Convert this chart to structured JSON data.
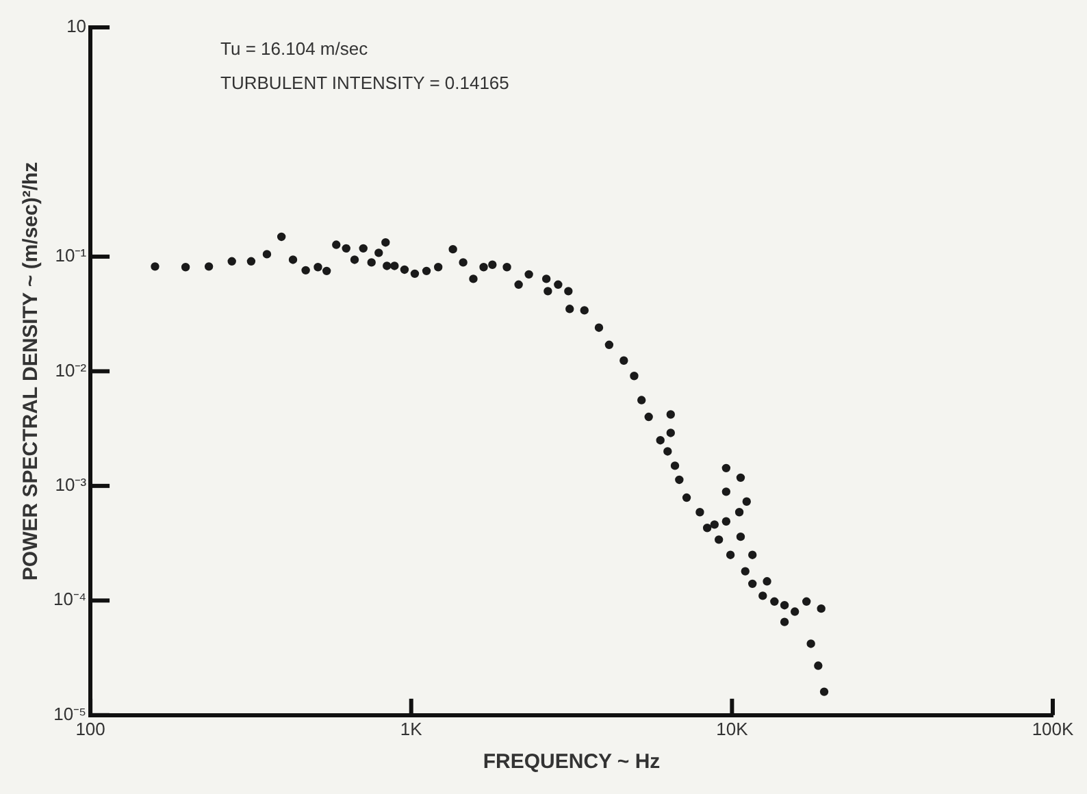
{
  "chart_data": {
    "type": "scatter",
    "xlabel": "FREQUENCY ~ Hz",
    "ylabel": "POWER SPECTRAL DENSITY ~ (m/sec)²/hz",
    "annotations": [
      "Tu = 16.104 m/sec",
      "TURBULENT INTENSITY = 0.14165"
    ],
    "log": "xy",
    "grid": false,
    "legend": false,
    "marker": "circle",
    "xlim": [
      100,
      100000
    ],
    "xticks": [
      100,
      {
        "value": 1000,
        "label": "1K"
      },
      {
        "value": 10000,
        "label": "10K"
      },
      {
        "value": 100000,
        "label": "100K"
      }
    ],
    "ylim": [
      1e-05,
      10
    ],
    "yticks": [
      {
        "value": 1e-05,
        "label": "10⁻⁵"
      },
      {
        "value": 0.0001,
        "label": "10⁻⁴"
      },
      {
        "value": 0.001,
        "label": "10⁻³"
      },
      {
        "value": 0.01,
        "label": "10⁻²"
      },
      {
        "value": 0.1,
        "label": "10⁻¹"
      },
      10
    ],
    "series": [
      {
        "color": "#1a1a1a",
        "x": [
          159,
          198,
          234,
          276,
          317,
          355,
          394,
          428,
          469,
          512,
          545,
          584,
          627,
          666,
          709,
          752,
          792,
          832,
          840,
          887,
          953,
          1026,
          1116,
          1214,
          1349,
          1452,
          1562,
          1682,
          1791,
          1988,
          2162,
          2327,
          2638,
          2667,
          2871,
          3090,
          3119,
          3467,
          3848,
          4140,
          4600,
          4955,
          5224,
          5500,
          6440,
          6440,
          5980,
          6300,
          6640,
          6850,
          7220,
          7940,
          8370,
          9100,
          9590,
          10640,
          9590,
          11110,
          10540,
          9590,
          8820,
          10640,
          9890,
          11580,
          11000,
          11580,
          12860,
          12470,
          13560,
          14580,
          15700,
          17070,
          18970,
          14580,
          17620,
          18570,
          19380
        ],
        "values": [
          0.082,
          0.081,
          0.082,
          0.091,
          0.091,
          0.105,
          0.149,
          0.094,
          0.076,
          0.081,
          0.075,
          0.127,
          0.118,
          0.094,
          0.118,
          0.089,
          0.108,
          0.133,
          0.083,
          0.083,
          0.077,
          0.071,
          0.075,
          0.081,
          0.116,
          0.089,
          0.064,
          0.081,
          0.085,
          0.081,
          0.057,
          0.07,
          0.064,
          0.05,
          0.057,
          0.05,
          0.035,
          0.034,
          0.024,
          0.017,
          0.0124,
          0.0091,
          0.0056,
          0.004,
          0.0042,
          0.0029,
          0.0025,
          0.002,
          0.0015,
          0.00113,
          0.00079,
          0.00059,
          0.00043,
          0.00034,
          0.00143,
          0.00118,
          0.00089,
          0.00073,
          0.00059,
          0.00049,
          0.00046,
          0.00036,
          0.00025,
          0.00025,
          0.00018,
          0.00014,
          0.000147,
          0.00011,
          9.8e-05,
          9.1e-05,
          8e-05,
          9.8e-05,
          8.5e-05,
          6.5e-05,
          4.2e-05,
          2.7e-05,
          1.6e-05
        ]
      }
    ]
  }
}
